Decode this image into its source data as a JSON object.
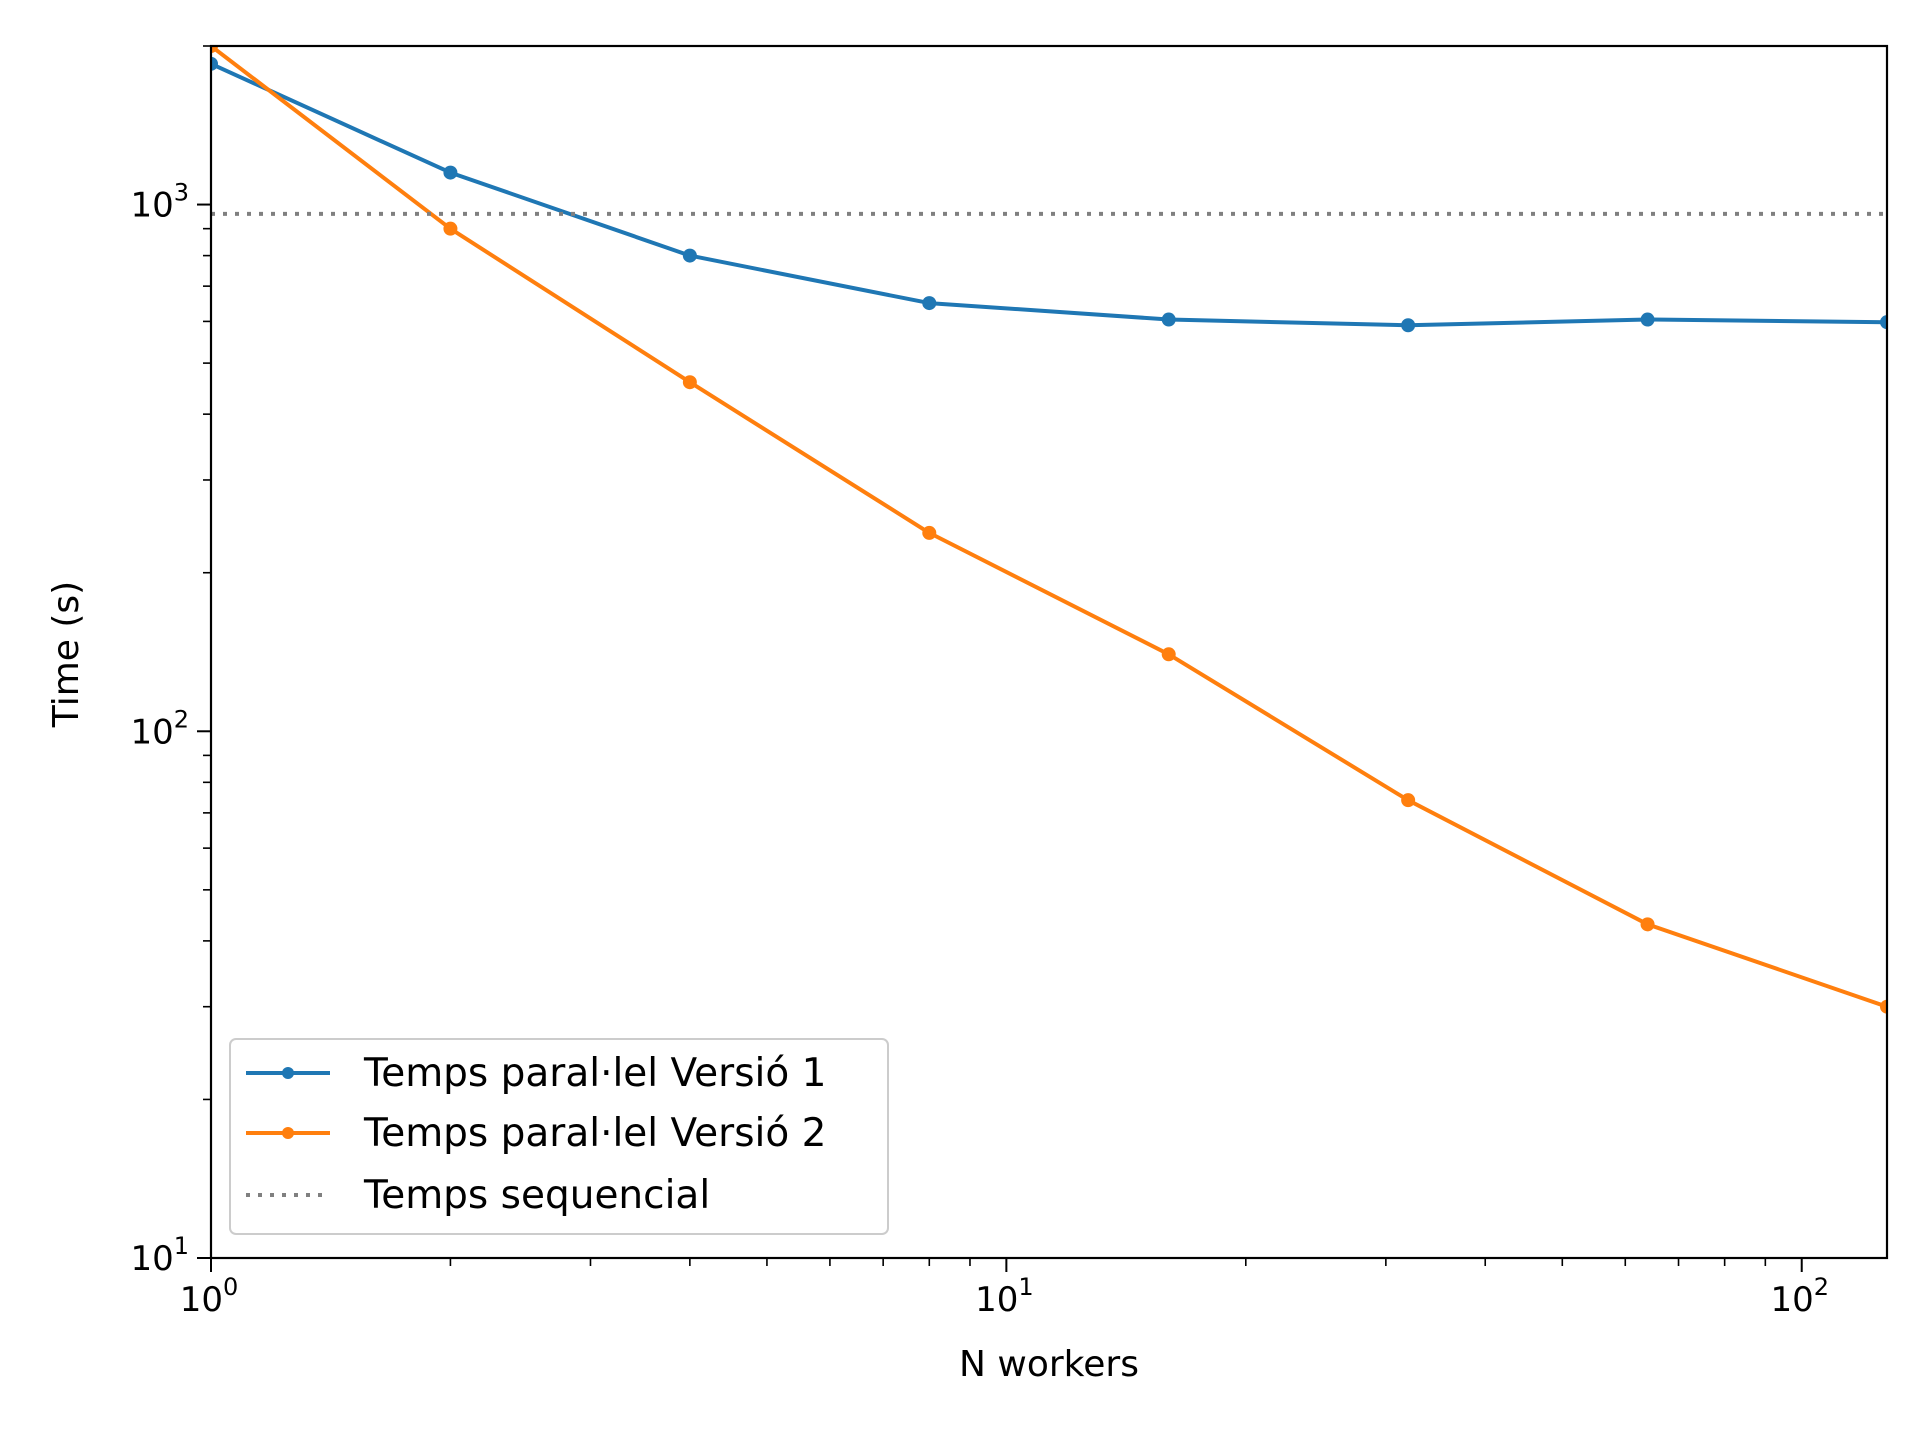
{
  "chart_data": {
    "type": "line",
    "title": "",
    "xlabel": "N workers",
    "ylabel": "Time (s)",
    "xscale": "log",
    "yscale": "log",
    "xlim": [
      1,
      128
    ],
    "ylim": [
      10,
      2000
    ],
    "x_ticks": [
      {
        "base": "10",
        "exp": "0",
        "value": 1
      },
      {
        "base": "10",
        "exp": "1",
        "value": 10
      },
      {
        "base": "10",
        "exp": "2",
        "value": 100
      }
    ],
    "y_ticks": [
      {
        "base": "10",
        "exp": "1",
        "value": 10
      },
      {
        "base": "10",
        "exp": "2",
        "value": 100
      },
      {
        "base": "10",
        "exp": "3",
        "value": 1000
      }
    ],
    "grid": false,
    "legend_position": "lower-left",
    "x": [
      1,
      2,
      4,
      8,
      16,
      32,
      64,
      128
    ],
    "series": [
      {
        "name": "Temps paral·lel Versió 1",
        "color": "#1f77b4",
        "style": "solid-marker",
        "values": [
          1850,
          1150,
          800,
          650,
          605,
          590,
          605,
          598
        ]
      },
      {
        "name": "Temps paral·lel Versió 2",
        "color": "#ff7f0e",
        "style": "solid-marker",
        "values": [
          2000,
          900,
          460,
          238,
          140,
          74,
          43,
          30
        ]
      },
      {
        "name": "Temps sequencial",
        "color": "#808080",
        "style": "dotted",
        "constant": 960
      }
    ]
  }
}
